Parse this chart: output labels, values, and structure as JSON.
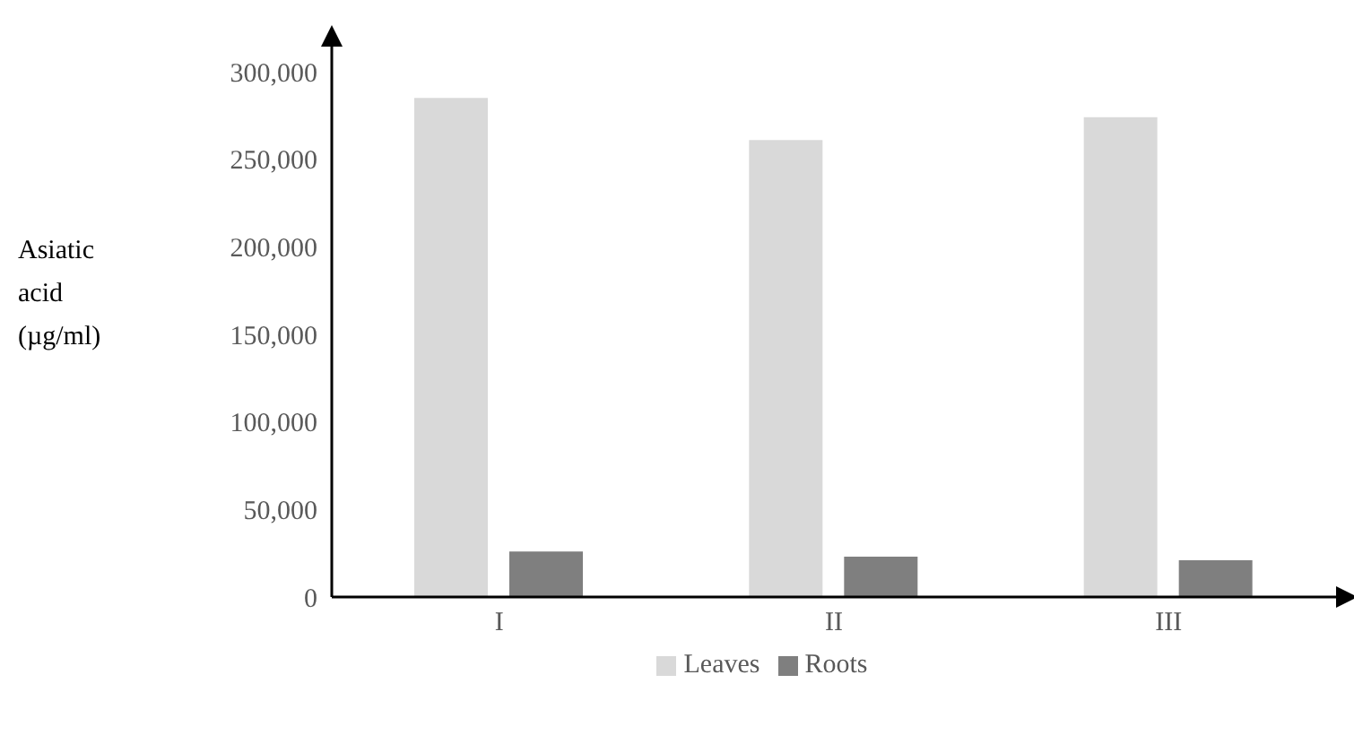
{
  "chart_data": {
    "type": "bar",
    "ylabel": "Asiatic acid (µg/ml)",
    "categories": [
      "I",
      "II",
      "III"
    ],
    "series": [
      {
        "name": "Leaves",
        "color": "#d9d9d9",
        "values": [
          285000,
          261000,
          274000
        ]
      },
      {
        "name": "Roots",
        "color": "#7f7f7f",
        "values": [
          26000,
          23000,
          21000
        ]
      }
    ],
    "ylim": [
      0,
      300000
    ],
    "yticks": [
      0,
      {
        "value": 50000,
        "label": "50,000"
      },
      {
        "value": 100000,
        "label": "100,000"
      },
      {
        "value": 150000,
        "label": "150,000"
      },
      {
        "value": 200000,
        "label": "200,000"
      },
      {
        "value": 250000,
        "label": "250,000"
      },
      {
        "value": 300000,
        "label": "300,000"
      }
    ],
    "grid": false,
    "legend": "bottom"
  }
}
